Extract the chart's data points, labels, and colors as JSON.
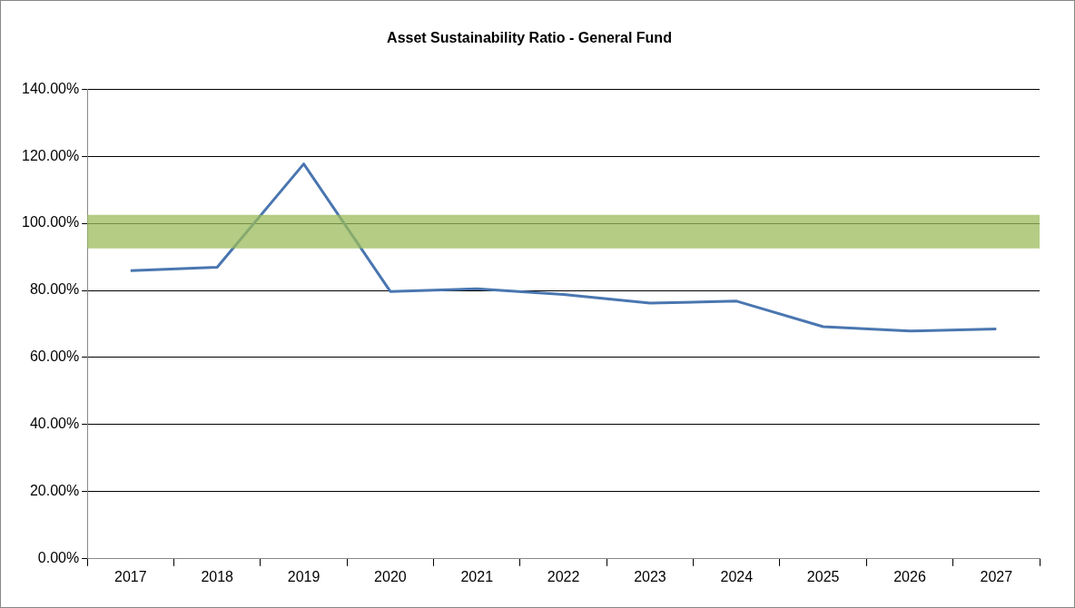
{
  "chart_data": {
    "type": "line",
    "title": "Asset Sustainability Ratio - General Fund",
    "categories": [
      "2017",
      "2018",
      "2019",
      "2020",
      "2021",
      "2022",
      "2023",
      "2024",
      "2025",
      "2026",
      "2027"
    ],
    "series": [
      {
        "color": "#4a76b0",
        "values": [
          85.9,
          86.9,
          117.7,
          79.7,
          80.5,
          78.8,
          76.2,
          76.8,
          69.2,
          67.9,
          68.5
        ]
      }
    ],
    "ylim": [
      0,
      140
    ],
    "yticks": [
      {
        "value": 0,
        "label": "0.00%"
      },
      {
        "value": 20,
        "label": "20.00%"
      },
      {
        "value": 40,
        "label": "40.00%"
      },
      {
        "value": 60,
        "label": "60.00%"
      },
      {
        "value": 80,
        "label": "80.00%"
      },
      {
        "value": 100,
        "label": "100.00%"
      },
      {
        "value": 120,
        "label": "120.00%"
      },
      {
        "value": 140,
        "label": "140.00%"
      }
    ],
    "bands": [
      {
        "axis": "y",
        "from": 92.5,
        "to": 102.5,
        "color": "#9bbb59"
      }
    ],
    "grid": "y",
    "legend": false,
    "marker": "none",
    "line_style": "solid"
  }
}
